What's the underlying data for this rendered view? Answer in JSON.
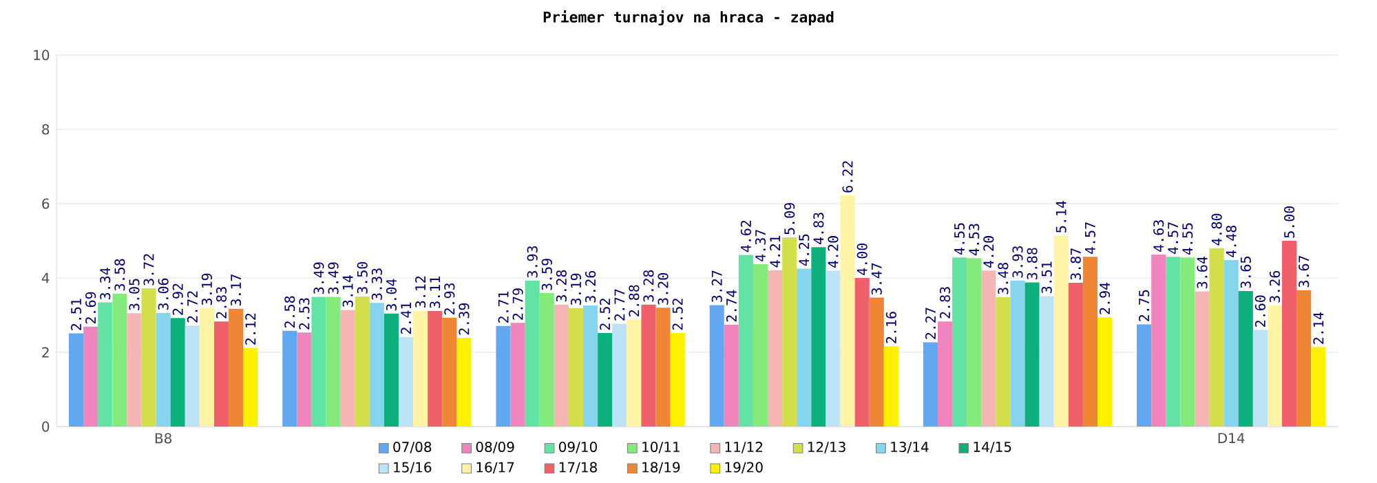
{
  "chart_data": {
    "type": "bar",
    "title": "Priemer turnajov na hraca - zapad",
    "categories": [
      "B8",
      null,
      null,
      null,
      null,
      "D14"
    ],
    "series": [
      {
        "name": "07/08",
        "color": "#62a8f0",
        "values": [
          2.51,
          2.58,
          2.71,
          3.27,
          2.27,
          2.75
        ],
        "value_labels": [
          "2.51",
          "2.58",
          "2.71",
          "3.27",
          "2.27",
          "2.75"
        ]
      },
      {
        "name": "08/09",
        "color": "#f085bd",
        "values": [
          2.69,
          2.53,
          2.79,
          2.74,
          2.83,
          4.63
        ],
        "value_labels": [
          "2.69",
          "2.53",
          "2.79",
          "2.74",
          "2.83",
          "4.63"
        ]
      },
      {
        "name": "09/10",
        "color": "#63e2a6",
        "values": [
          3.34,
          3.49,
          3.93,
          4.62,
          4.55,
          4.57
        ],
        "value_labels": [
          "3.34",
          "3.49",
          "3.93",
          "4.62",
          "4.55",
          "4.57"
        ]
      },
      {
        "name": "10/11",
        "color": "#85ea7c",
        "values": [
          3.58,
          3.49,
          3.59,
          4.37,
          4.53,
          4.55
        ],
        "value_labels": [
          "3.58",
          "3.49",
          "3.59",
          "4.37",
          "4.53",
          "4.55"
        ]
      },
      {
        "name": "11/12",
        "color": "#f5b5b5",
        "values": [
          3.05,
          3.14,
          3.28,
          4.21,
          4.2,
          3.64
        ],
        "value_labels": [
          "3.05",
          "3.14",
          "3.28",
          "4.21",
          "4.20",
          "3.64"
        ]
      },
      {
        "name": "12/13",
        "color": "#d3df4a",
        "values": [
          3.72,
          3.5,
          3.19,
          5.09,
          3.48,
          4.8
        ],
        "value_labels": [
          "3.72",
          "3.50",
          "3.19",
          "5.09",
          "3.48",
          "4.80"
        ]
      },
      {
        "name": "13/14",
        "color": "#87d4ef",
        "values": [
          3.06,
          3.33,
          3.26,
          4.25,
          3.93,
          4.48
        ],
        "value_labels": [
          "3.06",
          "3.33",
          "3.26",
          "4.25",
          "3.93",
          "4.48"
        ]
      },
      {
        "name": "14/15",
        "color": "#0db07d",
        "values": [
          2.92,
          3.04,
          2.52,
          4.83,
          3.88,
          3.65
        ],
        "value_labels": [
          "2.92",
          "3.04",
          "2.52",
          "4.83",
          "3.88",
          "3.65"
        ]
      },
      {
        "name": "15/16",
        "color": "#bde3f6",
        "values": [
          2.72,
          2.41,
          2.77,
          4.2,
          3.51,
          2.6
        ],
        "value_labels": [
          "2.72",
          "2.41",
          "2.77",
          "4.20",
          "3.51",
          "2.60"
        ]
      },
      {
        "name": "16/17",
        "color": "#fff3a6",
        "values": [
          3.19,
          3.12,
          2.88,
          6.22,
          5.14,
          3.26
        ],
        "value_labels": [
          "3.19",
          "3.12",
          "2.88",
          "6.22",
          "5.14",
          "3.26"
        ]
      },
      {
        "name": "17/18",
        "color": "#f0606a",
        "values": [
          2.83,
          3.11,
          3.28,
          4.0,
          3.87,
          5.0
        ],
        "value_labels": [
          "2.83",
          "3.11",
          "3.28",
          "4.00",
          "3.87",
          "5.00"
        ]
      },
      {
        "name": "18/19",
        "color": "#ef8636",
        "values": [
          3.17,
          2.93,
          3.2,
          3.47,
          4.57,
          3.67
        ],
        "value_labels": [
          "3.17",
          "2.93",
          "3.20",
          "3.47",
          "4.57",
          "3.67"
        ]
      },
      {
        "name": "19/20",
        "color": "#fff000",
        "values": [
          2.12,
          2.39,
          2.52,
          2.16,
          2.94,
          2.14
        ],
        "value_labels": [
          "2.12",
          "2.39",
          "2.52",
          "2.16",
          "2.94",
          "2.14"
        ]
      }
    ],
    "ylim": [
      0,
      10
    ],
    "yticks": [
      0,
      2,
      4,
      6,
      8,
      10
    ],
    "grid": "y",
    "legend": "bottom"
  }
}
